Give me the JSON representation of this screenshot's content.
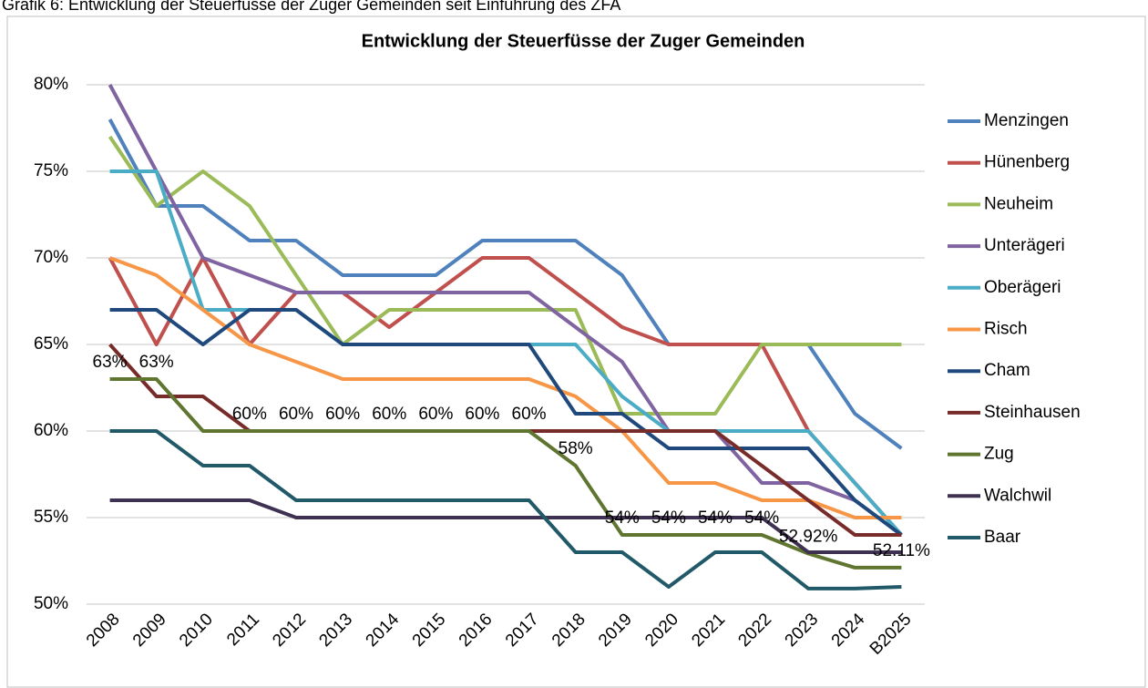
{
  "caption": "Grafik 6: Entwicklung der Steuerfüsse der Zuger Gemeinden seit Einführung des ZFA",
  "chart_data": {
    "type": "line",
    "title": "Entwicklung der Steuerfüsse der Zuger Gemeinden",
    "categories": [
      "2008",
      "2009",
      "2010",
      "2011",
      "2012",
      "2013",
      "2014",
      "2015",
      "2016",
      "2017",
      "2018",
      "2019",
      "2020",
      "2021",
      "2022",
      "2023",
      "2024",
      "B2025"
    ],
    "ylim": [
      50,
      80
    ],
    "yticks": [
      {
        "value": 50,
        "label": "50%"
      },
      {
        "value": 55,
        "label": "55%"
      },
      {
        "value": 60,
        "label": "60%"
      },
      {
        "value": 65,
        "label": "65%"
      },
      {
        "value": 70,
        "label": "70%"
      },
      {
        "value": 75,
        "label": "75%"
      },
      {
        "value": 80,
        "label": "80%"
      }
    ],
    "grid": true,
    "legend": "right",
    "series": [
      {
        "name": "Menzingen",
        "color": "#4f81bd",
        "values": [
          78,
          73,
          73,
          71,
          71,
          69,
          69,
          69,
          71,
          71,
          71,
          69,
          65,
          65,
          65,
          65,
          61,
          59
        ]
      },
      {
        "name": "Hünenberg",
        "color": "#c0504d",
        "values": [
          70,
          65,
          70,
          65,
          68,
          68,
          66,
          68,
          70,
          70,
          68,
          66,
          65,
          65,
          65,
          60,
          57,
          54
        ]
      },
      {
        "name": "Neuheim",
        "color": "#9bbb59",
        "values": [
          77,
          73,
          75,
          73,
          69,
          65,
          67,
          67,
          67,
          67,
          67,
          61,
          61,
          61,
          65,
          65,
          65,
          65
        ]
      },
      {
        "name": "Unterägeri",
        "color": "#8064a2",
        "values": [
          80,
          75,
          70,
          69,
          68,
          68,
          68,
          68,
          68,
          68,
          66,
          64,
          60,
          60,
          57,
          57,
          56,
          54
        ]
      },
      {
        "name": "Oberägeri",
        "color": "#4bacc6",
        "values": [
          75,
          75,
          67,
          67,
          67,
          65,
          65,
          65,
          65,
          65,
          65,
          62,
          60,
          60,
          60,
          60,
          57,
          54
        ]
      },
      {
        "name": "Risch",
        "color": "#f79646",
        "values": [
          70,
          69,
          67,
          65,
          64,
          63,
          63,
          63,
          63,
          63,
          62,
          60,
          57,
          57,
          56,
          56,
          55,
          55
        ]
      },
      {
        "name": "Cham",
        "color": "#1f497d",
        "values": [
          67,
          67,
          65,
          67,
          67,
          65,
          65,
          65,
          65,
          65,
          61,
          61,
          59,
          59,
          59,
          59,
          56,
          54
        ]
      },
      {
        "name": "Steinhausen",
        "color": "#772c2a",
        "values": [
          65,
          62,
          62,
          60,
          60,
          60,
          60,
          60,
          60,
          60,
          60,
          60,
          60,
          60,
          58,
          56,
          54,
          54
        ]
      },
      {
        "name": "Zug",
        "color": "#5f7530",
        "values": [
          63,
          63,
          60,
          60,
          60,
          60,
          60,
          60,
          60,
          60,
          58,
          54,
          54,
          54,
          54,
          52.92,
          52.11,
          52.11
        ],
        "value_labels": [
          "63%",
          "63%",
          null,
          "60%",
          "60%",
          "60%",
          "60%",
          "60%",
          "60%",
          "60%",
          "58%",
          "54%",
          "54%",
          "54%",
          "54%",
          "52.92%",
          null,
          "52.11%"
        ]
      },
      {
        "name": "Walchwil",
        "color": "#3f3151",
        "values": [
          56,
          56,
          56,
          56,
          55,
          55,
          55,
          55,
          55,
          55,
          55,
          55,
          55,
          55,
          55,
          53,
          53,
          53
        ]
      },
      {
        "name": "Baar",
        "color": "#215968",
        "values": [
          60,
          60,
          58,
          58,
          56,
          56,
          56,
          56,
          56,
          56,
          53,
          53,
          51,
          53,
          53,
          50.9,
          50.9,
          51
        ]
      }
    ]
  }
}
